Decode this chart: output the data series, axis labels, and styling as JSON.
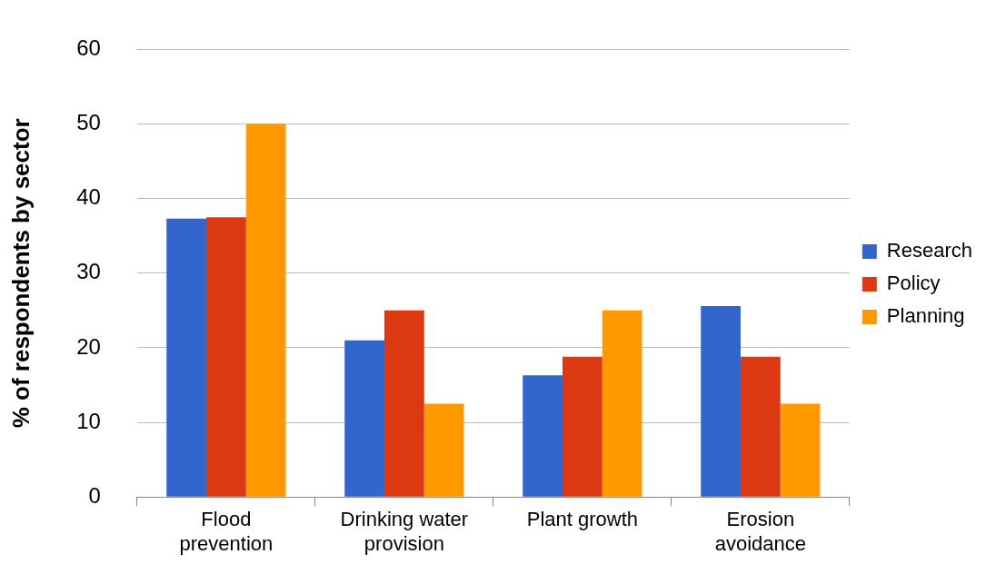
{
  "chart_data": {
    "type": "bar",
    "ylabel": "% of respondents by sector",
    "categories": [
      "Flood prevention",
      "Drinking water provision",
      "Plant growth",
      "Erosion avoidance"
    ],
    "series": [
      {
        "name": "Research",
        "color": "#3366cc",
        "values": [
          37.3,
          21,
          16.3,
          25.6
        ]
      },
      {
        "name": "Policy",
        "color": "#dc3912",
        "values": [
          37.5,
          25,
          18.8,
          18.8
        ]
      },
      {
        "name": "Planning",
        "color": "#ff9900",
        "values": [
          50,
          12.5,
          25,
          12.5
        ]
      }
    ],
    "ylim": [
      0,
      60
    ],
    "yticks": [
      0,
      10,
      20,
      30,
      40,
      50,
      60
    ],
    "grid": "y",
    "legend": "right"
  }
}
